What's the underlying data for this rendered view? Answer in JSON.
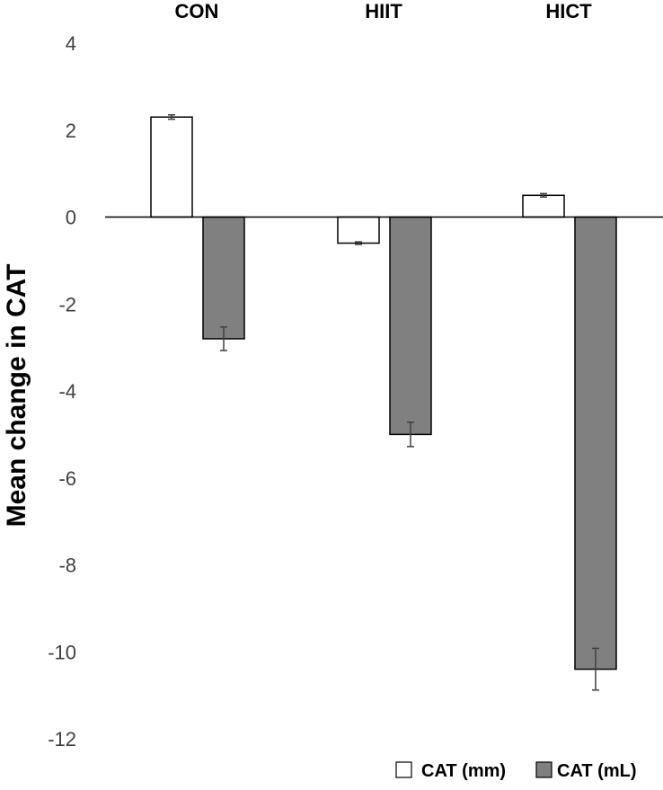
{
  "chart_data": {
    "type": "bar",
    "title": "",
    "xlabel": "",
    "ylabel": "Mean change in CAT",
    "categories": [
      "CON",
      "HIIT",
      "HICT"
    ],
    "category_position": "top",
    "ylim": [
      -12,
      4
    ],
    "yticks": [
      4,
      2,
      0,
      -2,
      -4,
      -6,
      -8,
      -10,
      -12
    ],
    "grid": false,
    "legend_position": "bottom-right",
    "series": [
      {
        "name": "CAT (mm)",
        "color": "#ffffff",
        "values": [
          2.3,
          -0.6,
          0.5
        ],
        "errors": [
          0.05,
          0.03,
          0.04
        ]
      },
      {
        "name": "CAT (mL)",
        "color": "#808080",
        "values": [
          -2.8,
          -5.0,
          -10.4
        ],
        "errors": [
          0.27,
          0.28,
          0.48
        ]
      }
    ]
  }
}
